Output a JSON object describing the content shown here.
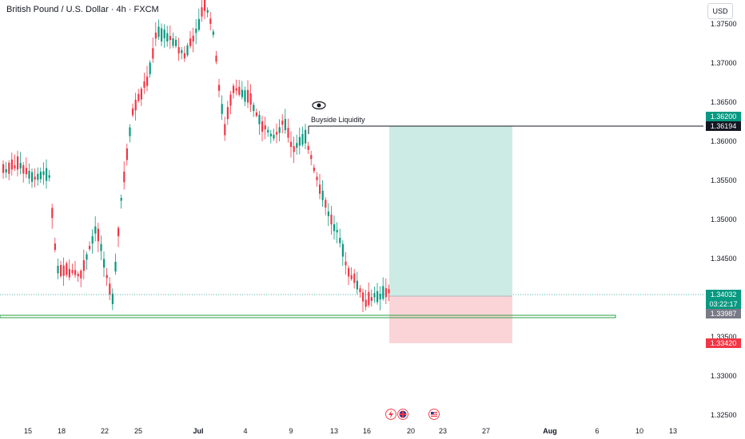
{
  "header": {
    "title": "British Pound / U.S. Dollar · 4h · FXCM",
    "currency": "USD"
  },
  "price_axis": {
    "ticks": [
      "1.37500",
      "1.37000",
      "1.36500",
      "1.36000",
      "1.35500",
      "1.35000",
      "1.34500",
      "1.34000",
      "1.33500",
      "1.33000",
      "1.32500"
    ]
  },
  "badges": {
    "target": "1.36200",
    "liquidity_level": "1.36194",
    "current_price": "1.34032",
    "countdown": "03:22:17",
    "entry": "1.33987",
    "stop": "1.33420"
  },
  "time_axis": {
    "ticks": [
      "15",
      "18",
      "22",
      "25",
      "Jul",
      "4",
      "9",
      "13",
      "16",
      "20",
      "23",
      "27",
      "Aug",
      "6",
      "10",
      "13"
    ]
  },
  "annotation": {
    "label": "Buyside Liquidity"
  },
  "icons": [
    "eye-icon",
    "flash-event-icon",
    "uk-flag-event-icon",
    "us-flag-event-icon"
  ],
  "colors": {
    "bull": "#089981",
    "bear": "#f23645",
    "profit_zone": "#cdebe5",
    "loss_zone": "#fbd4d8",
    "support_line": "#2ea043",
    "badge_green": "#089981",
    "badge_black": "#131722",
    "badge_grey": "#787b86",
    "badge_red": "#f23645"
  }
}
